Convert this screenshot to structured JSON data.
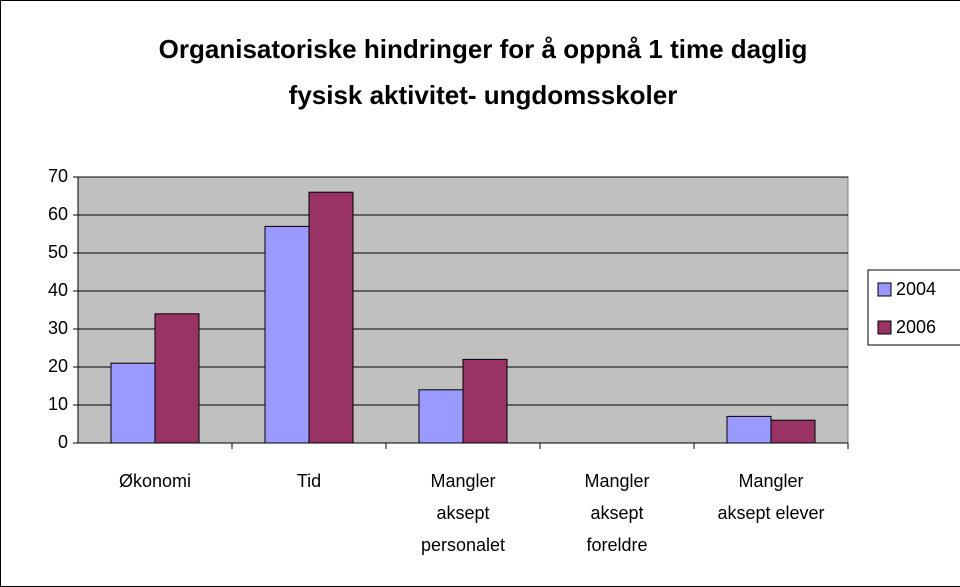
{
  "chart_data": {
    "type": "bar",
    "title": "Organisatoriske hindringer for å oppnå 1 time daglig fysisk aktivitet- ungdomsskoler",
    "categories": [
      "Økonomi",
      "Tid",
      "Mangler aksept personalet",
      "Mangler aksept foreldre",
      "Mangler aksept elever"
    ],
    "series": [
      {
        "name": "2004",
        "color": "#9999ff",
        "values": [
          21,
          57,
          14,
          null,
          7
        ]
      },
      {
        "name": "2006",
        "color": "#993366",
        "values": [
          34,
          66,
          22,
          null,
          6
        ]
      }
    ],
    "ylim": [
      0,
      70
    ],
    "yticks": [
      0,
      10,
      20,
      30,
      40,
      50,
      60,
      70
    ],
    "grid": true,
    "legend": "right"
  }
}
